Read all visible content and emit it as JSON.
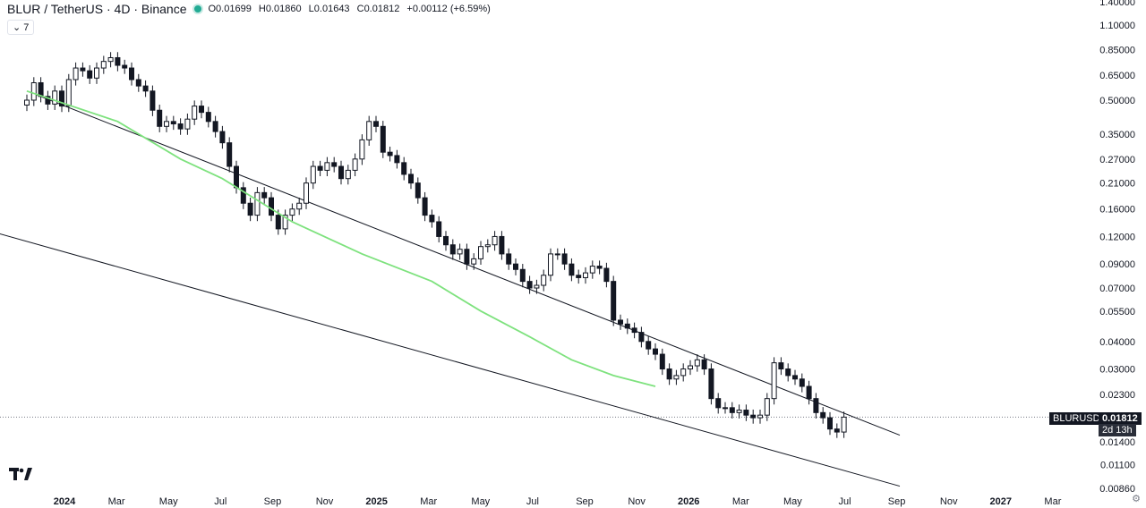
{
  "header": {
    "symbol": "BLUR / TetherUS · 4D · Binance",
    "open": "O0.01699",
    "high": "H0.01860",
    "low": "L0.01643",
    "close": "C0.01812",
    "change": "+0.00112 (+6.59%)",
    "status_color": "#22ab94"
  },
  "indicator_toggle": "⌄ 7",
  "price_axis": {
    "last_price": "0.01812",
    "countdown": "2d 13h",
    "symbol_tag": "BLURUSDT"
  },
  "colors": {
    "ma": "#7ee27e",
    "trendline": "#131722",
    "candle": "#131722"
  },
  "icons": {
    "logo": "tradingview-logo-icon",
    "settings": "gear-icon"
  },
  "chart_data": {
    "type": "candlestick",
    "scale": "log",
    "ylim": [
      0.0086,
      1.4
    ],
    "yticks": [
      "1.40000",
      "1.10000",
      "0.85000",
      "0.65000",
      "0.50000",
      "0.35000",
      "0.27000",
      "0.21000",
      "0.16000",
      "0.12000",
      "0.09000",
      "0.07000",
      "0.05500",
      "0.04000",
      "0.03000",
      "0.02300",
      "0.01400",
      "0.01100",
      "0.00860"
    ],
    "xticks": [
      "2024",
      "Mar",
      "May",
      "Jul",
      "Sep",
      "Nov",
      "2025",
      "Mar",
      "May",
      "Jul",
      "Sep",
      "Nov",
      "2026",
      "Mar",
      "May",
      "Jul",
      "Sep",
      "Nov",
      "2027",
      "Mar"
    ],
    "last_price": 0.01812,
    "series": [
      {
        "type": "close",
        "values": [
          0.5,
          0.6,
          0.52,
          0.48,
          0.55,
          0.47,
          0.62,
          0.7,
          0.68,
          0.63,
          0.7,
          0.75,
          0.78,
          0.72,
          0.7,
          0.62,
          0.58,
          0.55,
          0.45,
          0.38,
          0.4,
          0.39,
          0.37,
          0.41,
          0.47,
          0.44,
          0.4,
          0.36,
          0.32,
          0.25,
          0.2,
          0.17,
          0.15,
          0.19,
          0.18,
          0.15,
          0.13,
          0.15,
          0.16,
          0.17,
          0.21,
          0.25,
          0.24,
          0.26,
          0.25,
          0.22,
          0.24,
          0.27,
          0.33,
          0.4,
          0.38,
          0.29,
          0.28,
          0.26,
          0.23,
          0.21,
          0.18,
          0.15,
          0.14,
          0.12,
          0.11,
          0.1,
          0.105,
          0.09,
          0.095,
          0.108,
          0.11,
          0.12,
          0.1,
          0.09,
          0.085,
          0.075,
          0.07,
          0.072,
          0.08,
          0.1,
          0.1,
          0.09,
          0.08,
          0.078,
          0.082,
          0.088,
          0.086,
          0.075,
          0.05,
          0.048,
          0.046,
          0.044,
          0.04,
          0.037,
          0.035,
          0.03,
          0.027,
          0.028,
          0.03,
          0.031,
          0.033,
          0.03,
          0.022,
          0.02,
          0.02,
          0.019,
          0.0195,
          0.0185,
          0.018,
          0.0185,
          0.022,
          0.032,
          0.03,
          0.028,
          0.027,
          0.025,
          0.022,
          0.019,
          0.018,
          0.016,
          0.0155,
          0.01812
        ]
      },
      {
        "type": "line",
        "name": "",
        "points": [
          [
            0,
            0.55
          ],
          [
            13,
            0.4
          ],
          [
            22,
            0.27
          ],
          [
            28,
            0.22
          ],
          [
            38,
            0.14
          ],
          [
            48,
            0.1
          ],
          [
            58,
            0.075
          ],
          [
            65,
            0.055
          ],
          [
            72,
            0.042
          ],
          [
            78,
            0.033
          ],
          [
            84,
            0.028
          ],
          [
            90,
            0.025
          ]
        ]
      }
    ],
    "trendlines": [
      {
        "from": [
          0,
          0.55
        ],
        "to": [
          125,
          0.015
        ]
      },
      {
        "from": [
          -15,
          0.155
        ],
        "to": [
          125,
          0.0088
        ]
      }
    ]
  }
}
